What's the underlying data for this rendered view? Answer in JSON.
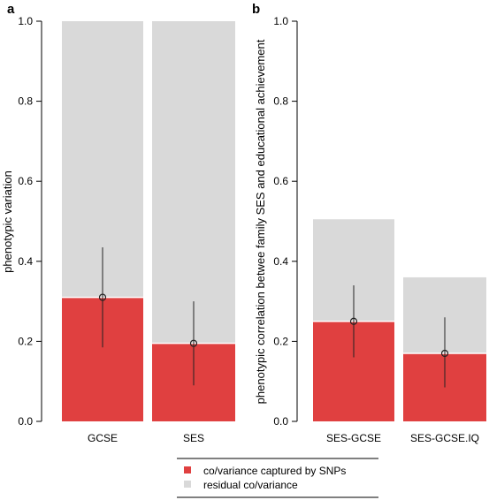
{
  "colors": {
    "snp": "#e04040",
    "residual": "#d9d9d9",
    "errorbar": "#222222"
  },
  "legend": {
    "items": [
      {
        "label": "co/variance captured by SNPs",
        "color": "#e04040"
      },
      {
        "label": "residual co/variance",
        "color": "#d9d9d9"
      }
    ]
  },
  "chart_data": [
    {
      "type": "bar",
      "panel_label": "a",
      "ylabel": "phenotypic variation",
      "ylim": [
        0,
        1
      ],
      "yticks": [
        "0.0",
        "0.2",
        "0.4",
        "0.6",
        "0.8",
        "1.0"
      ],
      "categories": [
        "GCSE",
        "SES"
      ],
      "series": [
        {
          "name": "co/variance captured by SNPs",
          "values": [
            0.31,
            0.195
          ],
          "ci_low": [
            0.185,
            0.09
          ],
          "ci_high": [
            0.435,
            0.3
          ]
        },
        {
          "name": "residual co/variance",
          "values": [
            0.69,
            0.805
          ]
        }
      ]
    },
    {
      "type": "bar",
      "panel_label": "b",
      "ylabel": "phenotypic correlation betwee family SES and educational achievement",
      "ylim": [
        0,
        1
      ],
      "yticks": [
        "0.0",
        "0.2",
        "0.4",
        "0.6",
        "0.8",
        "1.0"
      ],
      "categories": [
        "SES-GCSE",
        "SES-GCSE.IQ"
      ],
      "series": [
        {
          "name": "co/variance captured by SNPs",
          "values": [
            0.25,
            0.17
          ],
          "ci_low": [
            0.16,
            0.085
          ],
          "ci_high": [
            0.34,
            0.26
          ]
        },
        {
          "name": "residual co/variance",
          "values": [
            0.255,
            0.19
          ]
        }
      ]
    }
  ]
}
